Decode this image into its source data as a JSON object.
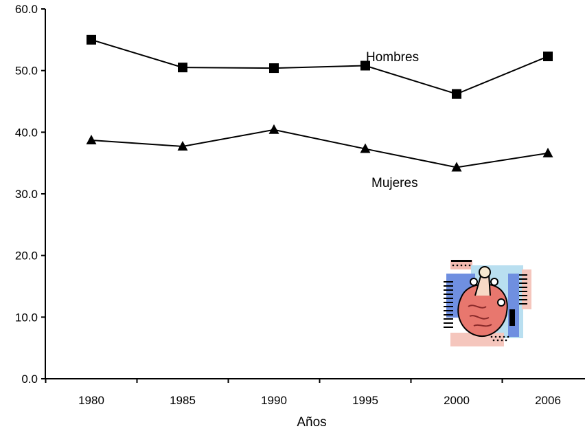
{
  "chart_data": {
    "type": "line",
    "title": "",
    "xlabel": "Años",
    "ylabel": "",
    "categories": [
      "1980",
      "1985",
      "1990",
      "1995",
      "2000",
      "2006"
    ],
    "ylim": [
      0,
      60
    ],
    "yticks": [
      "0.0",
      "10.0",
      "20.0",
      "30.0",
      "40.0",
      "50.0",
      "60.0"
    ],
    "grid": false,
    "legend": "none",
    "series": [
      {
        "name": "Hombres",
        "marker": "square",
        "color": "#000000",
        "values": [
          55.0,
          50.5,
          50.4,
          50.8,
          46.2,
          52.3
        ]
      },
      {
        "name": "Mujeres",
        "marker": "triangle",
        "color": "#000000",
        "values": [
          38.7,
          37.7,
          40.4,
          37.3,
          34.3,
          36.6
        ]
      }
    ]
  },
  "decoration": {
    "icon": "heart-clipart-icon"
  }
}
